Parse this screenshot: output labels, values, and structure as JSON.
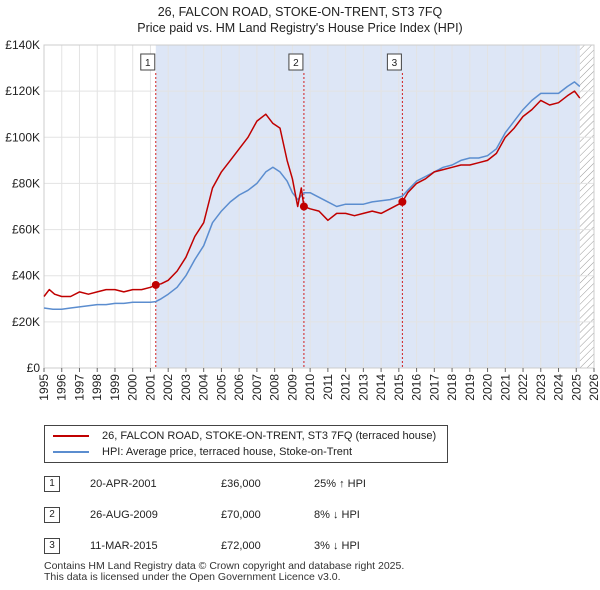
{
  "header": {
    "title": "26, FALCON ROAD, STOKE-ON-TRENT, ST3 7FQ",
    "subtitle": "Price paid vs. HM Land Registry's House Price Index (HPI)"
  },
  "colors": {
    "property": "#c00000",
    "hpi": "#5b8dcf",
    "band": "#dde6f6",
    "hatch": "#999999",
    "marker_line": "#d02020"
  },
  "chart_data": {
    "type": "line",
    "title": "26, FALCON ROAD, STOKE-ON-TRENT, ST3 7FQ",
    "ylim": [
      0,
      140000
    ],
    "xlim": [
      1995,
      2026
    ],
    "y_ticks": [
      0,
      20000,
      40000,
      60000,
      80000,
      100000,
      120000,
      140000
    ],
    "y_tick_labels": [
      "£0",
      "£20K",
      "£40K",
      "£60K",
      "£80K",
      "£100K",
      "£120K",
      "£140K"
    ],
    "x_ticks": [
      1995,
      1996,
      1997,
      1998,
      1999,
      2000,
      2001,
      2002,
      2003,
      2004,
      2005,
      2006,
      2007,
      2008,
      2009,
      2010,
      2011,
      2012,
      2013,
      2014,
      2015,
      2016,
      2017,
      2018,
      2019,
      2020,
      2021,
      2022,
      2023,
      2024,
      2025,
      2026
    ],
    "x_tick_labels": [
      "1995",
      "1996",
      "1997",
      "1998",
      "1999",
      "2000",
      "2001",
      "2002",
      "2003",
      "2004",
      "2005",
      "2006",
      "2007",
      "2008",
      "2009",
      "2010",
      "2011",
      "2012",
      "2013",
      "2014",
      "2015",
      "2016",
      "2017",
      "2018",
      "2019",
      "2020",
      "2021",
      "2022",
      "2023",
      "2024",
      "2025",
      "2026"
    ],
    "shaded_band": [
      2001.3,
      2025.2
    ],
    "hatched_future_from": 2025.2,
    "series": [
      {
        "name": "26, FALCON ROAD, STOKE-ON-TRENT, ST3 7FQ (terraced house)",
        "color": "#c00000",
        "x": [
          1995.0,
          1995.3,
          1995.6,
          1996.0,
          1996.5,
          1997.0,
          1997.5,
          1998.0,
          1998.5,
          1999.0,
          1999.5,
          2000.0,
          2000.5,
          2001.0,
          2001.3,
          2001.6,
          2002.0,
          2002.5,
          2003.0,
          2003.5,
          2004.0,
          2004.5,
          2005.0,
          2005.5,
          2006.0,
          2006.5,
          2007.0,
          2007.5,
          2007.9,
          2008.3,
          2008.7,
          2009.0,
          2009.3,
          2009.5,
          2009.65,
          2010.0,
          2010.5,
          2011.0,
          2011.5,
          2012.0,
          2012.5,
          2013.0,
          2013.5,
          2014.0,
          2014.5,
          2015.0,
          2015.2,
          2015.5,
          2016.0,
          2016.5,
          2017.0,
          2017.5,
          2018.0,
          2018.5,
          2019.0,
          2019.5,
          2020.0,
          2020.5,
          2021.0,
          2021.5,
          2022.0,
          2022.5,
          2023.0,
          2023.5,
          2024.0,
          2024.5,
          2024.9,
          2025.2
        ],
        "values": [
          31000,
          34000,
          32000,
          31000,
          31000,
          33000,
          32000,
          33000,
          34000,
          34000,
          33000,
          34000,
          34000,
          35000,
          36000,
          36500,
          38000,
          42000,
          48000,
          57000,
          63000,
          78000,
          85000,
          90000,
          95000,
          100000,
          107000,
          110000,
          106000,
          104000,
          90000,
          82000,
          70000,
          78000,
          70000,
          69000,
          68000,
          64000,
          67000,
          67000,
          66000,
          67000,
          68000,
          67000,
          69000,
          71000,
          72000,
          76000,
          80000,
          82000,
          85000,
          86000,
          87000,
          88000,
          88000,
          89000,
          90000,
          93000,
          100000,
          104000,
          109000,
          112000,
          116000,
          114000,
          115000,
          118000,
          120000,
          117000
        ]
      },
      {
        "name": "HPI: Average price, terraced house, Stoke-on-Trent",
        "color": "#5b8dcf",
        "x": [
          1995.0,
          1995.5,
          1996.0,
          1996.5,
          1997.0,
          1997.5,
          1998.0,
          1998.5,
          1999.0,
          1999.5,
          2000.0,
          2000.5,
          2001.0,
          2001.3,
          2001.6,
          2002.0,
          2002.5,
          2003.0,
          2003.5,
          2004.0,
          2004.5,
          2005.0,
          2005.5,
          2006.0,
          2006.5,
          2007.0,
          2007.5,
          2007.9,
          2008.3,
          2008.7,
          2009.0,
          2009.3,
          2009.65,
          2010.0,
          2010.5,
          2011.0,
          2011.5,
          2012.0,
          2012.5,
          2013.0,
          2013.5,
          2014.0,
          2014.5,
          2015.0,
          2015.2,
          2015.5,
          2016.0,
          2016.5,
          2017.0,
          2017.5,
          2018.0,
          2018.5,
          2019.0,
          2019.5,
          2020.0,
          2020.5,
          2021.0,
          2021.5,
          2022.0,
          2022.5,
          2023.0,
          2023.5,
          2024.0,
          2024.5,
          2024.9,
          2025.2
        ],
        "values": [
          26000,
          25500,
          25500,
          26000,
          26500,
          27000,
          27500,
          27500,
          28000,
          28000,
          28500,
          28500,
          28500,
          28800,
          30000,
          32000,
          35000,
          40000,
          47000,
          53000,
          63000,
          68000,
          72000,
          75000,
          77000,
          80000,
          85000,
          87000,
          85000,
          81000,
          76000,
          73000,
          76000,
          76000,
          74000,
          72000,
          70000,
          71000,
          71000,
          71000,
          72000,
          72500,
          73000,
          74000,
          74500,
          77000,
          81000,
          83000,
          85000,
          87000,
          88000,
          90000,
          91000,
          91000,
          92000,
          95000,
          102000,
          107000,
          112000,
          116000,
          119000,
          119000,
          119000,
          122000,
          124000,
          122000
        ]
      }
    ],
    "annotations": [
      {
        "label": "1",
        "x": 2001.3,
        "y": 36000
      },
      {
        "label": "2",
        "x": 2009.65,
        "y": 70000
      },
      {
        "label": "3",
        "x": 2015.2,
        "y": 72000
      }
    ]
  },
  "legend": {
    "property_label": "26, FALCON ROAD, STOKE-ON-TRENT, ST3 7FQ (terraced house)",
    "hpi_label": "HPI: Average price, terraced house, Stoke-on-Trent"
  },
  "transactions": [
    {
      "num": "1",
      "date": "20-APR-2001",
      "price": "£36,000",
      "hpi": "25% ↑ HPI"
    },
    {
      "num": "2",
      "date": "26-AUG-2009",
      "price": "£70,000",
      "hpi": "8% ↓ HPI"
    },
    {
      "num": "3",
      "date": "11-MAR-2015",
      "price": "£72,000",
      "hpi": "3% ↓ HPI"
    }
  ],
  "footer": {
    "line1": "Contains HM Land Registry data © Crown copyright and database right 2025.",
    "line2": "This data is licensed under the Open Government Licence v3.0."
  }
}
